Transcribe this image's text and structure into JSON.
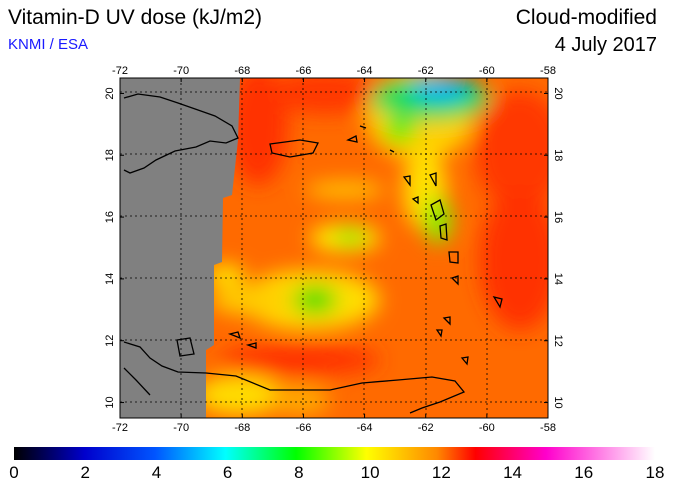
{
  "header": {
    "title": "Vitamin-D UV dose (kJ/m2)",
    "credit": "KNMI / ESA",
    "mode": "Cloud-modified",
    "date": "4 July 2017"
  },
  "map": {
    "lon_ticks": [
      "-72",
      "-70",
      "-68",
      "-66",
      "-64",
      "-62",
      "-60",
      "-58"
    ],
    "lat_ticks": [
      "10",
      "12",
      "14",
      "16",
      "18",
      "20"
    ],
    "lon_range": [
      -72,
      -58
    ],
    "lat_range": [
      9.5,
      20.5
    ],
    "no_data_color": "#808080",
    "grid": "dotted"
  },
  "colorbar": {
    "labels": [
      "0",
      "2",
      "4",
      "6",
      "8",
      "10",
      "12",
      "14",
      "16",
      "18"
    ],
    "range": [
      0,
      18
    ],
    "colors": [
      "#000000",
      "#0000ff",
      "#00ffff",
      "#00ff00",
      "#ffff00",
      "#ff8000",
      "#ff0000",
      "#ff00ff",
      "#ffffff"
    ]
  }
}
